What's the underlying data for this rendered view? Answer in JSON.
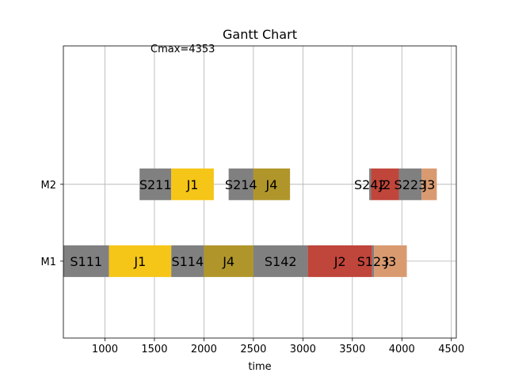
{
  "chart_data": {
    "type": "gantt",
    "title": "Gantt Chart",
    "xlabel": "time",
    "ylabel": "",
    "annotation": "Cmax=4353",
    "xlim": [
      580,
      4550
    ],
    "xticks": [
      1000,
      1500,
      2000,
      2500,
      3000,
      3500,
      4000,
      4500
    ],
    "machines": [
      "M1",
      "M2"
    ],
    "ylim": [
      -1,
      2.8
    ],
    "grid": true,
    "colors": {
      "setup": "#808080",
      "J1": "#f5c518",
      "J2": "#c0453a",
      "J3": "#d99a70",
      "J4": "#b0962a"
    },
    "tasks": [
      {
        "machine": "M1",
        "label": "S111",
        "kind": "setup",
        "start": 580,
        "end": 1040
      },
      {
        "machine": "M1",
        "label": "J1",
        "kind": "J1",
        "start": 1040,
        "end": 1670
      },
      {
        "machine": "M1",
        "label": "S114",
        "kind": "setup",
        "start": 1670,
        "end": 2000
      },
      {
        "machine": "M1",
        "label": "J4",
        "kind": "J4",
        "start": 2000,
        "end": 2500
      },
      {
        "machine": "M1",
        "label": "S142",
        "kind": "setup",
        "start": 2500,
        "end": 3050
      },
      {
        "machine": "M1",
        "label": "J2",
        "kind": "J2",
        "start": 3050,
        "end": 3700
      },
      {
        "machine": "M1",
        "label": "S123",
        "kind": "setup",
        "start": 3700,
        "end": 3720
      },
      {
        "machine": "M1",
        "label": "J3",
        "kind": "J3",
        "start": 3720,
        "end": 4050
      },
      {
        "machine": "M2",
        "label": "S211",
        "kind": "setup",
        "start": 1350,
        "end": 1670
      },
      {
        "machine": "M2",
        "label": "J1",
        "kind": "J1",
        "start": 1670,
        "end": 2100
      },
      {
        "machine": "M2",
        "label": "S214",
        "kind": "setup",
        "start": 2250,
        "end": 2500
      },
      {
        "machine": "M2",
        "label": "J4",
        "kind": "J4",
        "start": 2500,
        "end": 2870
      },
      {
        "machine": "M2",
        "label": "S242",
        "kind": "setup",
        "start": 3670,
        "end": 3690
      },
      {
        "machine": "M2",
        "label": "J2",
        "kind": "J2",
        "start": 3690,
        "end": 3970
      },
      {
        "machine": "M2",
        "label": "S223",
        "kind": "setup",
        "start": 3970,
        "end": 4200
      },
      {
        "machine": "M2",
        "label": "J3",
        "kind": "J3",
        "start": 4200,
        "end": 4353
      }
    ]
  }
}
